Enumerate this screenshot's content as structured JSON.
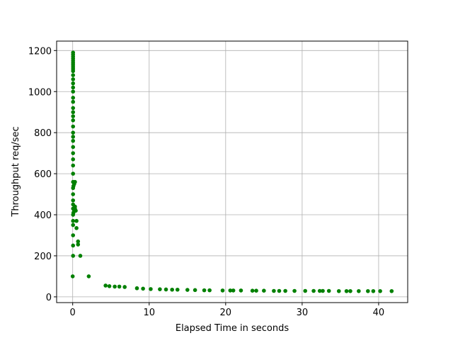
{
  "chart_data": {
    "type": "scatter",
    "xlabel": "Elapsed Time in seconds",
    "ylabel": "Throughput req/sec",
    "color": "#008000",
    "grid": true,
    "xlim": [
      -2.1,
      43.8
    ],
    "ylim": [
      -28,
      1246
    ],
    "xticks": [
      0,
      10,
      20,
      30,
      40
    ],
    "yticks": [
      0,
      200,
      400,
      600,
      800,
      1000,
      1200
    ],
    "x": [
      0.0,
      0.05,
      0.05,
      0.05,
      0.05,
      0.05,
      0.05,
      0.05,
      0.05,
      0.05,
      0.05,
      0.05,
      0.05,
      0.05,
      0.05,
      0.05,
      0.05,
      0.05,
      0.05,
      0.05,
      0.05,
      0.05,
      0.05,
      0.05,
      0.05,
      0.05,
      0.05,
      0.05,
      0.05,
      0.05,
      0.05,
      0.05,
      0.05,
      0.05,
      0.05,
      0.05,
      0.05,
      0.05,
      0.05,
      0.05,
      0.05,
      0.05,
      0.05,
      0.1,
      0.1,
      0.2,
      0.2,
      0.3,
      0.3,
      0.3,
      0.4,
      0.5,
      0.5,
      0.7,
      0.7,
      1.0,
      2.1,
      4.3,
      4.8,
      5.5,
      6.1,
      6.8,
      8.4,
      9.2,
      10.2,
      11.4,
      12.2,
      13.0,
      13.7,
      15.0,
      16.0,
      17.2,
      17.9,
      19.6,
      20.6,
      21.0,
      22.0,
      23.5,
      24.0,
      25.0,
      26.3,
      27.0,
      27.8,
      29.0,
      30.4,
      31.5,
      32.3,
      32.7,
      33.5,
      34.8,
      35.8,
      36.3,
      37.4,
      38.6,
      39.3,
      40.2,
      41.7
    ],
    "values": [
      100,
      200,
      250,
      300,
      350,
      370,
      400,
      430,
      450,
      470,
      500,
      530,
      560,
      600,
      640,
      670,
      700,
      730,
      760,
      780,
      800,
      830,
      860,
      880,
      900,
      920,
      950,
      970,
      1000,
      1020,
      1040,
      1060,
      1080,
      1100,
      1110,
      1120,
      1130,
      1140,
      1150,
      1160,
      1170,
      1180,
      1190,
      410,
      540,
      420,
      550,
      430,
      440,
      560,
      420,
      335,
      370,
      255,
      270,
      200,
      100,
      55,
      52,
      50,
      50,
      48,
      42,
      40,
      38,
      37,
      36,
      35,
      35,
      34,
      33,
      32,
      32,
      31,
      31,
      31,
      31,
      30,
      30,
      30,
      29,
      29,
      29,
      29,
      29,
      29,
      29,
      29,
      29,
      28,
      28,
      28,
      28,
      28,
      28,
      28,
      28
    ]
  }
}
